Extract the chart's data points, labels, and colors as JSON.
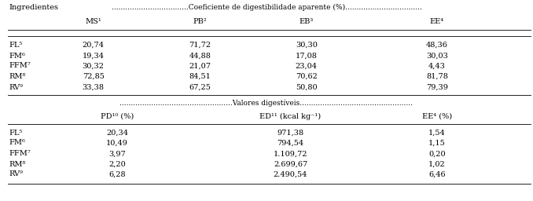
{
  "title_header": "Ingredientes",
  "title_dashes": "Coeficiente de digestibilidade aparente (%)",
  "s1_col_headers": [
    "MS¹",
    "PB²",
    "EB³",
    "EE⁴"
  ],
  "s1_rows": [
    [
      "FL⁵",
      "20,74",
      "71,72",
      "30,30",
      "48,36"
    ],
    [
      "FM⁶",
      "19,34",
      "44,88",
      "17,08",
      "30,03"
    ],
    [
      "FFM⁷",
      "30,32",
      "21,07",
      "23,04",
      "4,43"
    ],
    [
      "RM⁸",
      "72,85",
      "84,51",
      "70,62",
      "81,78"
    ],
    [
      "RV⁹",
      "33,38",
      "67,25",
      "50,80",
      "79,39"
    ]
  ],
  "s2_title": "Valores digestíveis",
  "s2_col_headers": [
    "PD¹⁰ (%)",
    "ED¹¹ (kcal kg⁻¹)",
    "EE⁴ (%)"
  ],
  "s2_rows": [
    [
      "FL⁵",
      "20,34",
      "971,38",
      "1,54"
    ],
    [
      "FM⁶",
      "10,49",
      "794,54",
      "1,15"
    ],
    [
      "FFM⁷",
      "3,97",
      "1.109,72",
      "0,20"
    ],
    [
      "RM⁸",
      "2,20",
      "2.699,67",
      "1,02"
    ],
    [
      "RV⁹",
      "6,28",
      "2.490,54",
      "6,46"
    ]
  ],
  "bg_color": "#ffffff",
  "text_color": "#000000",
  "font_size": 7.0
}
